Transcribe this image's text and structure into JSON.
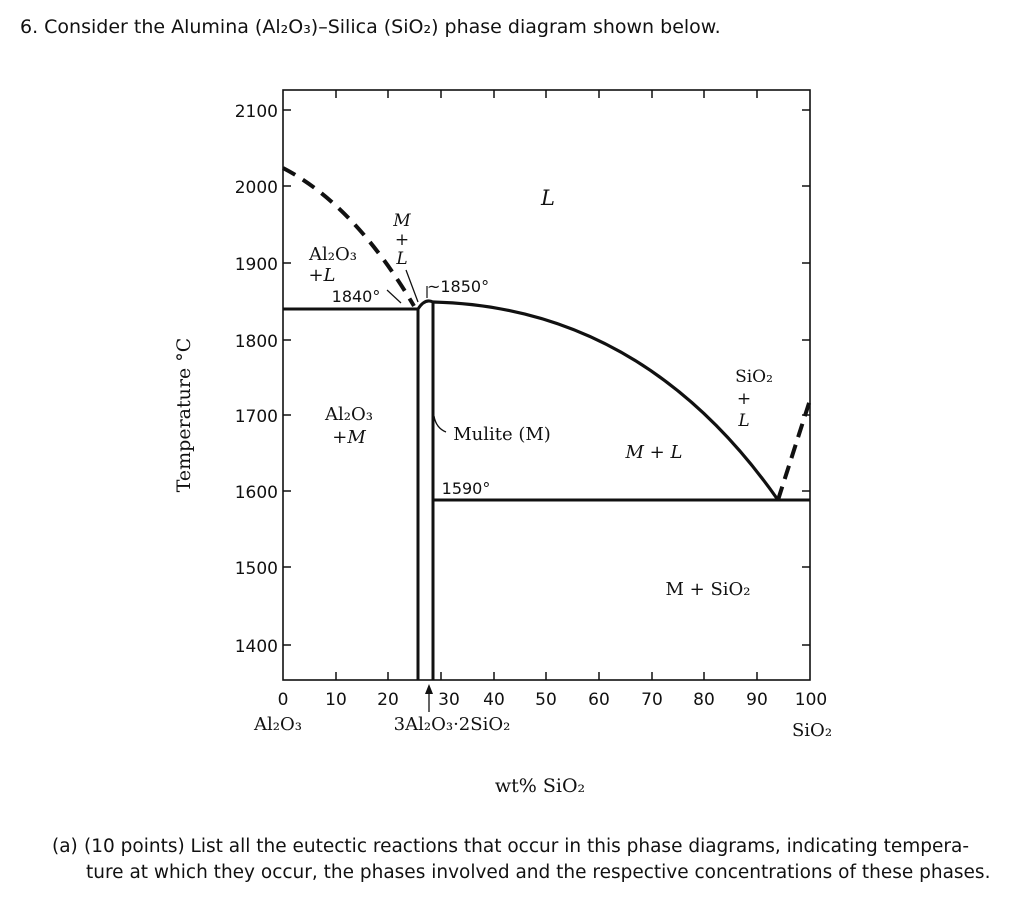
{
  "question": {
    "text": "6. Consider the Alumina (Al₂O₃)–Silica (SiO₂) phase diagram shown below."
  },
  "diagram": {
    "y_axis": {
      "title": "Temperature °C",
      "ticks": [
        "2100",
        "2000",
        "1900",
        "1800",
        "1700",
        "1600",
        "1500",
        "1400"
      ]
    },
    "x_axis": {
      "title": "wt% SiO₂",
      "ticks": [
        "0",
        "10",
        "20",
        "30",
        "40",
        "50",
        "60",
        "70",
        "80",
        "90",
        "100"
      ],
      "left_end_label": "Al₂O₃",
      "right_end_label": "SiO₂",
      "compound_label": "3Al₂O₃·2SiO₂"
    },
    "regions": {
      "liquid": "L",
      "al2o3_liquid_top": "Al₂O₃",
      "al2o3_liquid_bottom": "+L",
      "m_plus_l_vertical": [
        "M",
        "+",
        "L"
      ],
      "al2o3_mulite_top": "Al₂O₃",
      "al2o3_mulite_bottom": "+M",
      "mulite": "Mulite (M)",
      "m_plus_l": "M + L",
      "sio2_liquid": [
        "SiO₂",
        "+",
        "L"
      ],
      "m_plus_sio2": "M + SiO₂"
    },
    "temperature_labels": {
      "eutectic_left": "1840°",
      "congruent_melt": "~1850°",
      "eutectic_right": "1590°"
    }
  },
  "part_a": {
    "marker": "(a)",
    "text_line1": "(10 points) List all the eutectic reactions that occur in this phase diagrams, indicating tempera-",
    "text_line2": "ture at which they occur, the phases involved and the respective concentrations of these phases."
  }
}
